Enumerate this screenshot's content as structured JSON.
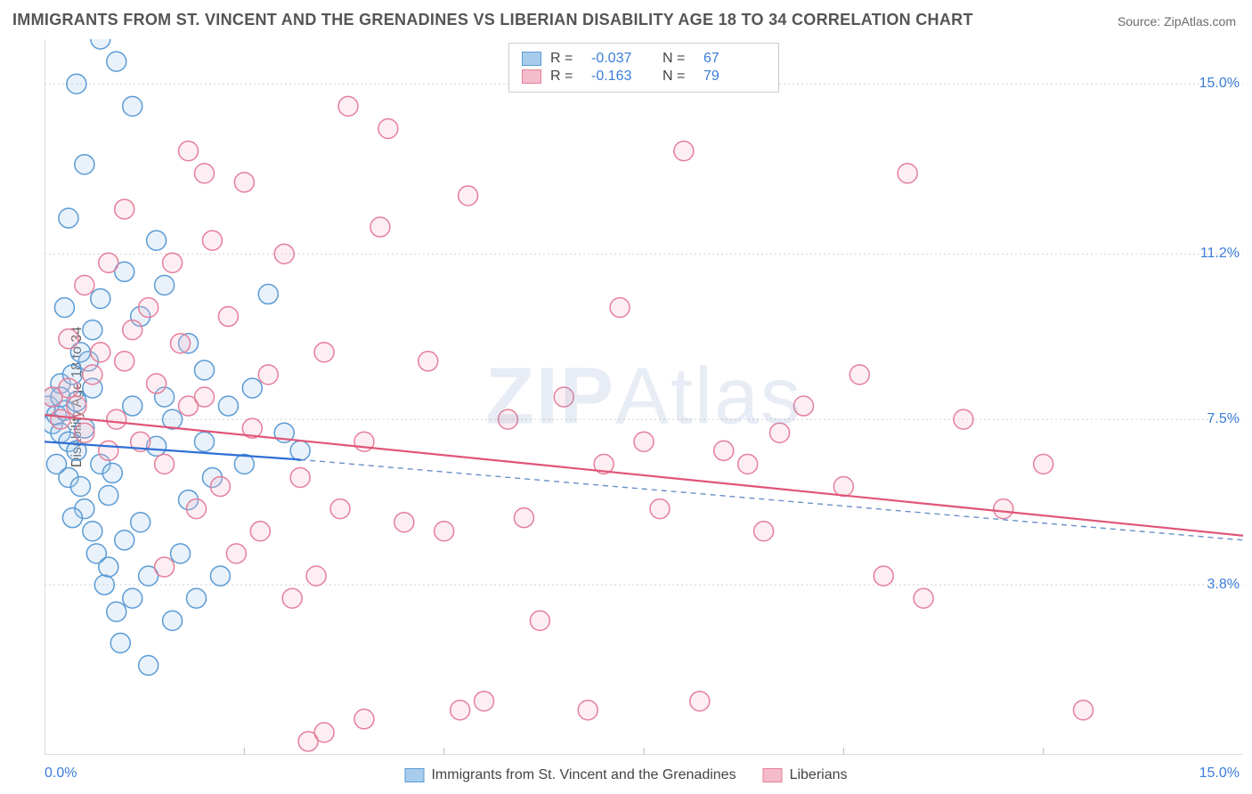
{
  "title": "IMMIGRANTS FROM ST. VINCENT AND THE GRENADINES VS LIBERIAN DISABILITY AGE 18 TO 34 CORRELATION CHART",
  "source": "Source: ZipAtlas.com",
  "ylabel": "Disability Age 18 to 34",
  "watermark_heavy": "ZIP",
  "watermark_light": "Atlas",
  "chart": {
    "type": "scatter",
    "xlim": [
      0,
      15
    ],
    "ylim": [
      0,
      16
    ],
    "xtick_positions": [
      2.5,
      5.0,
      7.5,
      10.0,
      12.5
    ],
    "ytick_labels": [
      "3.8%",
      "7.5%",
      "11.2%",
      "15.0%"
    ],
    "ytick_values": [
      3.8,
      7.5,
      11.2,
      15.0
    ],
    "x_origin_label": "0.0%",
    "x_max_label": "15.0%",
    "axis_label_color": "#3b7dd8",
    "grid_color": "#d0d0d0",
    "border_color": "#bbbbbb",
    "background": "#ffffff",
    "marker_radius": 11,
    "marker_stroke_width": 1.5,
    "marker_fill_opacity": 0.25,
    "series": [
      {
        "name": "Immigrants from St. Vincent and the Grenadines",
        "color_stroke": "#5a9bd5",
        "color_fill": "#a8cdec",
        "R": "-0.037",
        "N": "67",
        "trend": {
          "x1": 0,
          "y1": 7.0,
          "x2": 3.2,
          "y2": 6.6,
          "x2_ext": 15,
          "y2_ext": 4.8,
          "solid_color": "#2e6fd6",
          "dash_color": "#6a8fc8",
          "width": 2.2
        },
        "points": [
          [
            0.05,
            7.8
          ],
          [
            0.1,
            7.4
          ],
          [
            0.1,
            8.0
          ],
          [
            0.15,
            7.6
          ],
          [
            0.2,
            7.2
          ],
          [
            0.2,
            8.3
          ],
          [
            0.25,
            7.7
          ],
          [
            0.3,
            7.0
          ],
          [
            0.3,
            6.2
          ],
          [
            0.35,
            8.5
          ],
          [
            0.4,
            6.8
          ],
          [
            0.4,
            7.9
          ],
          [
            0.45,
            6.0
          ],
          [
            0.5,
            7.3
          ],
          [
            0.5,
            5.5
          ],
          [
            0.55,
            8.8
          ],
          [
            0.6,
            5.0
          ],
          [
            0.6,
            9.5
          ],
          [
            0.65,
            4.5
          ],
          [
            0.7,
            6.5
          ],
          [
            0.7,
            10.2
          ],
          [
            0.75,
            3.8
          ],
          [
            0.8,
            5.8
          ],
          [
            0.8,
            4.2
          ],
          [
            0.85,
            6.3
          ],
          [
            0.9,
            3.2
          ],
          [
            0.95,
            2.5
          ],
          [
            1.0,
            10.8
          ],
          [
            1.0,
            4.8
          ],
          [
            1.1,
            7.8
          ],
          [
            1.1,
            3.5
          ],
          [
            1.2,
            9.8
          ],
          [
            1.2,
            5.2
          ],
          [
            1.3,
            4.0
          ],
          [
            1.3,
            2.0
          ],
          [
            1.4,
            6.9
          ],
          [
            1.5,
            8.0
          ],
          [
            1.5,
            10.5
          ],
          [
            1.6,
            3.0
          ],
          [
            1.6,
            7.5
          ],
          [
            1.7,
            4.5
          ],
          [
            1.8,
            9.2
          ],
          [
            1.8,
            5.7
          ],
          [
            1.9,
            3.5
          ],
          [
            2.0,
            7.0
          ],
          [
            2.0,
            8.6
          ],
          [
            2.1,
            6.2
          ],
          [
            2.2,
            4.0
          ],
          [
            2.3,
            7.8
          ],
          [
            2.5,
            6.5
          ],
          [
            2.6,
            8.2
          ],
          [
            2.8,
            10.3
          ],
          [
            3.0,
            7.2
          ],
          [
            3.2,
            6.8
          ],
          [
            0.4,
            15.0
          ],
          [
            0.7,
            16.0
          ],
          [
            0.9,
            15.5
          ],
          [
            1.1,
            14.5
          ],
          [
            0.5,
            13.2
          ],
          [
            0.3,
            12.0
          ],
          [
            1.4,
            11.5
          ],
          [
            0.2,
            8.0
          ],
          [
            0.15,
            6.5
          ],
          [
            0.6,
            8.2
          ],
          [
            0.35,
            5.3
          ],
          [
            0.45,
            9.0
          ],
          [
            0.25,
            10.0
          ]
        ]
      },
      {
        "name": "Liberians",
        "color_stroke": "#e57f9a",
        "color_fill": "#f4bccb",
        "R": "-0.163",
        "N": "79",
        "trend": {
          "x1": 0,
          "y1": 7.6,
          "x2": 15,
          "y2": 4.9,
          "solid_color": "#e05578",
          "width": 2.2
        },
        "points": [
          [
            0.1,
            8.0
          ],
          [
            0.2,
            7.5
          ],
          [
            0.3,
            8.2
          ],
          [
            0.4,
            7.8
          ],
          [
            0.5,
            7.2
          ],
          [
            0.6,
            8.5
          ],
          [
            0.7,
            9.0
          ],
          [
            0.8,
            6.8
          ],
          [
            0.9,
            7.5
          ],
          [
            1.0,
            8.8
          ],
          [
            1.1,
            9.5
          ],
          [
            1.2,
            7.0
          ],
          [
            1.3,
            10.0
          ],
          [
            1.4,
            8.3
          ],
          [
            1.5,
            6.5
          ],
          [
            1.6,
            11.0
          ],
          [
            1.7,
            9.2
          ],
          [
            1.8,
            7.8
          ],
          [
            1.9,
            5.5
          ],
          [
            2.0,
            8.0
          ],
          [
            2.1,
            11.5
          ],
          [
            2.2,
            6.0
          ],
          [
            2.3,
            9.8
          ],
          [
            2.4,
            4.5
          ],
          [
            2.5,
            12.8
          ],
          [
            2.6,
            7.3
          ],
          [
            2.7,
            5.0
          ],
          [
            2.8,
            8.5
          ],
          [
            3.0,
            11.2
          ],
          [
            3.1,
            3.5
          ],
          [
            3.2,
            6.2
          ],
          [
            3.3,
            0.3
          ],
          [
            3.4,
            4.0
          ],
          [
            3.5,
            9.0
          ],
          [
            3.7,
            5.5
          ],
          [
            3.8,
            14.5
          ],
          [
            4.0,
            7.0
          ],
          [
            4.2,
            11.8
          ],
          [
            4.3,
            14.0
          ],
          [
            4.5,
            5.2
          ],
          [
            4.8,
            8.8
          ],
          [
            5.0,
            5.0
          ],
          [
            5.2,
            1.0
          ],
          [
            5.3,
            12.5
          ],
          [
            5.5,
            1.2
          ],
          [
            5.8,
            7.5
          ],
          [
            6.0,
            5.3
          ],
          [
            6.2,
            3.0
          ],
          [
            6.5,
            8.0
          ],
          [
            6.8,
            1.0
          ],
          [
            7.0,
            6.5
          ],
          [
            7.2,
            10.0
          ],
          [
            7.5,
            7.0
          ],
          [
            7.7,
            5.5
          ],
          [
            8.0,
            13.5
          ],
          [
            8.2,
            1.2
          ],
          [
            8.5,
            6.8
          ],
          [
            8.8,
            6.5
          ],
          [
            9.0,
            5.0
          ],
          [
            9.2,
            7.2
          ],
          [
            9.5,
            7.8
          ],
          [
            10.0,
            6.0
          ],
          [
            10.2,
            8.5
          ],
          [
            10.5,
            4.0
          ],
          [
            10.8,
            13.0
          ],
          [
            11.0,
            3.5
          ],
          [
            11.5,
            7.5
          ],
          [
            12.0,
            5.5
          ],
          [
            12.5,
            6.5
          ],
          [
            13.0,
            1.0
          ],
          [
            0.5,
            10.5
          ],
          [
            1.0,
            12.2
          ],
          [
            1.8,
            13.5
          ],
          [
            0.3,
            9.3
          ],
          [
            0.8,
            11.0
          ],
          [
            2.0,
            13.0
          ],
          [
            3.5,
            0.5
          ],
          [
            4.0,
            0.8
          ],
          [
            1.5,
            4.2
          ]
        ]
      }
    ]
  },
  "legend_bottom": {
    "items": [
      {
        "color_stroke": "#5a9bd5",
        "color_fill": "#a8cdec",
        "label": "Immigrants from St. Vincent and the Grenadines"
      },
      {
        "color_stroke": "#e57f9a",
        "color_fill": "#f4bccb",
        "label": "Liberians"
      }
    ]
  }
}
